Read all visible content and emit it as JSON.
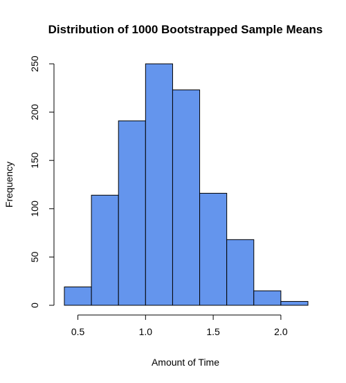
{
  "chart_data": {
    "type": "bar",
    "title": "Distribution of 1000 Bootstrapped Sample Means",
    "xlabel": "Amount of Time",
    "ylabel": "Frequency",
    "bins": [
      {
        "x0": 0.4,
        "x1": 0.6,
        "count": 19
      },
      {
        "x0": 0.6,
        "x1": 0.8,
        "count": 114
      },
      {
        "x0": 0.8,
        "x1": 1.0,
        "count": 191
      },
      {
        "x0": 1.0,
        "x1": 1.2,
        "count": 250
      },
      {
        "x0": 1.2,
        "x1": 1.4,
        "count": 223
      },
      {
        "x0": 1.4,
        "x1": 1.6,
        "count": 116
      },
      {
        "x0": 1.6,
        "x1": 1.8,
        "count": 68
      },
      {
        "x0": 1.8,
        "x1": 2.0,
        "count": 15
      },
      {
        "x0": 2.0,
        "x1": 2.2,
        "count": 4
      }
    ],
    "xticks": [
      0.5,
      1.0,
      1.5,
      2.0
    ],
    "xtick_labels": [
      "0.5",
      "1.0",
      "1.5",
      "2.0"
    ],
    "yticks": [
      0,
      50,
      100,
      150,
      200,
      250
    ],
    "ytick_labels": [
      "0",
      "50",
      "100",
      "150",
      "200",
      "250"
    ],
    "xlim": [
      0.4,
      2.2
    ],
    "ylim": [
      0,
      250
    ],
    "grid": false,
    "colors": {
      "bar_fill": "#6495ED",
      "bar_border": "#000000"
    }
  }
}
